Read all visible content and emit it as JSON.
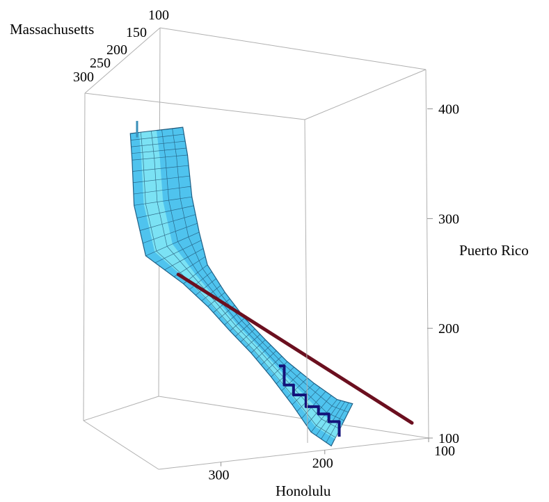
{
  "chart_data": {
    "type": "surface3d",
    "title": "",
    "axes": {
      "x": {
        "label": "Honolulu",
        "ticks": [
          "300",
          "200",
          "100"
        ],
        "range": [
          100,
          360
        ]
      },
      "y": {
        "label": "Massachusetts",
        "ticks": [
          "100",
          "150",
          "200",
          "250",
          "300"
        ],
        "range": [
          100,
          320
        ]
      },
      "z": {
        "label": "Puerto Rico",
        "ticks": [
          "100",
          "200",
          "300",
          "400"
        ],
        "range": [
          100,
          420
        ]
      }
    },
    "series": [
      {
        "kind": "surface",
        "color": "#4fc3ee",
        "mesh_color": "#1a4a6a",
        "polyline_z": [
          [
            355,
            215,
            405
          ],
          [
            352,
            213,
            380
          ],
          [
            349,
            212,
            340
          ],
          [
            340,
            210,
            300
          ],
          [
            318,
            208,
            270
          ],
          [
            298,
            205,
            245
          ],
          [
            278,
            203,
            220
          ],
          [
            258,
            200,
            198
          ],
          [
            238,
            197,
            175
          ],
          [
            215,
            195,
            150
          ],
          [
            195,
            193,
            128
          ],
          [
            178,
            190,
            118
          ]
        ]
      },
      {
        "kind": "path",
        "color": "#13137a",
        "points": [
          [
            238,
            200,
            178
          ],
          [
            233,
            200,
            160
          ],
          [
            224,
            200,
            150
          ],
          [
            212,
            200,
            138
          ],
          [
            200,
            200,
            130
          ],
          [
            190,
            200,
            122
          ],
          [
            180,
            200,
            116
          ]
        ]
      },
      {
        "kind": "line",
        "color": "#6b0f1f",
        "points": [
          [
            335,
            200,
            272
          ],
          [
            110,
            200,
            112
          ]
        ]
      }
    ],
    "grid": false,
    "box": true
  }
}
